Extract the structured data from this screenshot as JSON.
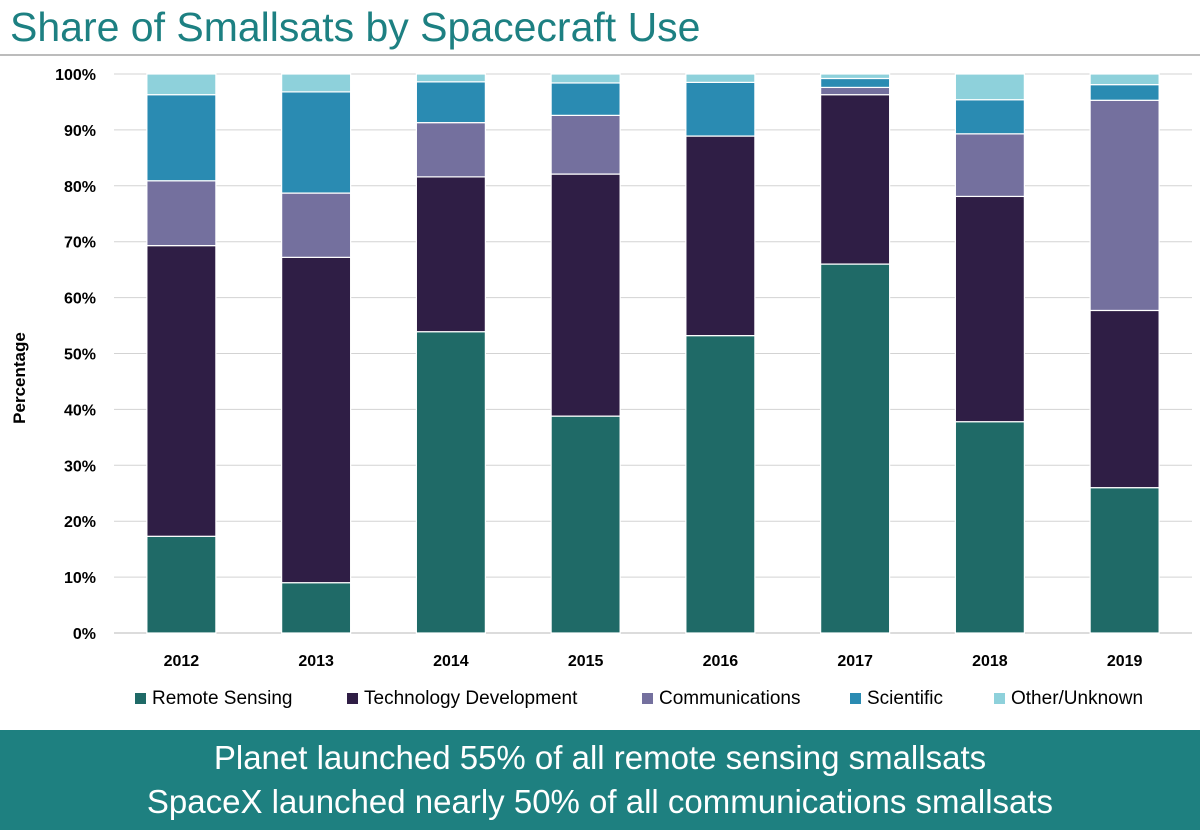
{
  "title": "Share of Smallsats by Spacecraft Use",
  "footer": {
    "line1": "Planet launched 55% of all remote sensing smallsats",
    "line2": "SpaceX launched nearly 50% of all communications smallsats"
  },
  "colors": {
    "remote_sensing": "#1f6a67",
    "technology_development": "#2f1e45",
    "communications": "#74709e",
    "scientific": "#2a8bb2",
    "other_unknown": "#8ed1db",
    "title": "#1d8082",
    "footer_bg": "#1e8080"
  },
  "chart_data": {
    "type": "bar",
    "stacked": true,
    "ylabel": "Percentage",
    "xlabel": "",
    "ylim": [
      0,
      100
    ],
    "y_ticks": [
      "0%",
      "10%",
      "20%",
      "30%",
      "40%",
      "50%",
      "60%",
      "70%",
      "80%",
      "90%",
      "100%"
    ],
    "grid": true,
    "legend_position": "bottom",
    "categories": [
      "2012",
      "2013",
      "2014",
      "2015",
      "2016",
      "2017",
      "2018",
      "2019"
    ],
    "series": [
      {
        "name": "Remote Sensing",
        "color": "#1f6a67",
        "values": [
          17.3,
          9.0,
          53.9,
          38.8,
          53.2,
          66.0,
          37.8,
          26.0
        ]
      },
      {
        "name": "Technology Development",
        "color": "#2f1e45",
        "values": [
          52.0,
          58.2,
          27.7,
          43.3,
          35.7,
          30.3,
          40.3,
          31.7
        ]
      },
      {
        "name": "Communications",
        "color": "#74709e",
        "values": [
          11.6,
          11.5,
          9.7,
          10.5,
          0,
          1.3,
          11.2,
          37.6
        ]
      },
      {
        "name": "Scientific",
        "color": "#2a8bb2",
        "values": [
          15.4,
          18.1,
          7.3,
          5.8,
          9.6,
          1.6,
          6.1,
          2.8
        ]
      },
      {
        "name": "Other/Unknown",
        "color": "#8ed1db",
        "values": [
          3.7,
          3.2,
          1.4,
          1.6,
          1.5,
          0.8,
          4.6,
          1.9
        ]
      }
    ]
  }
}
